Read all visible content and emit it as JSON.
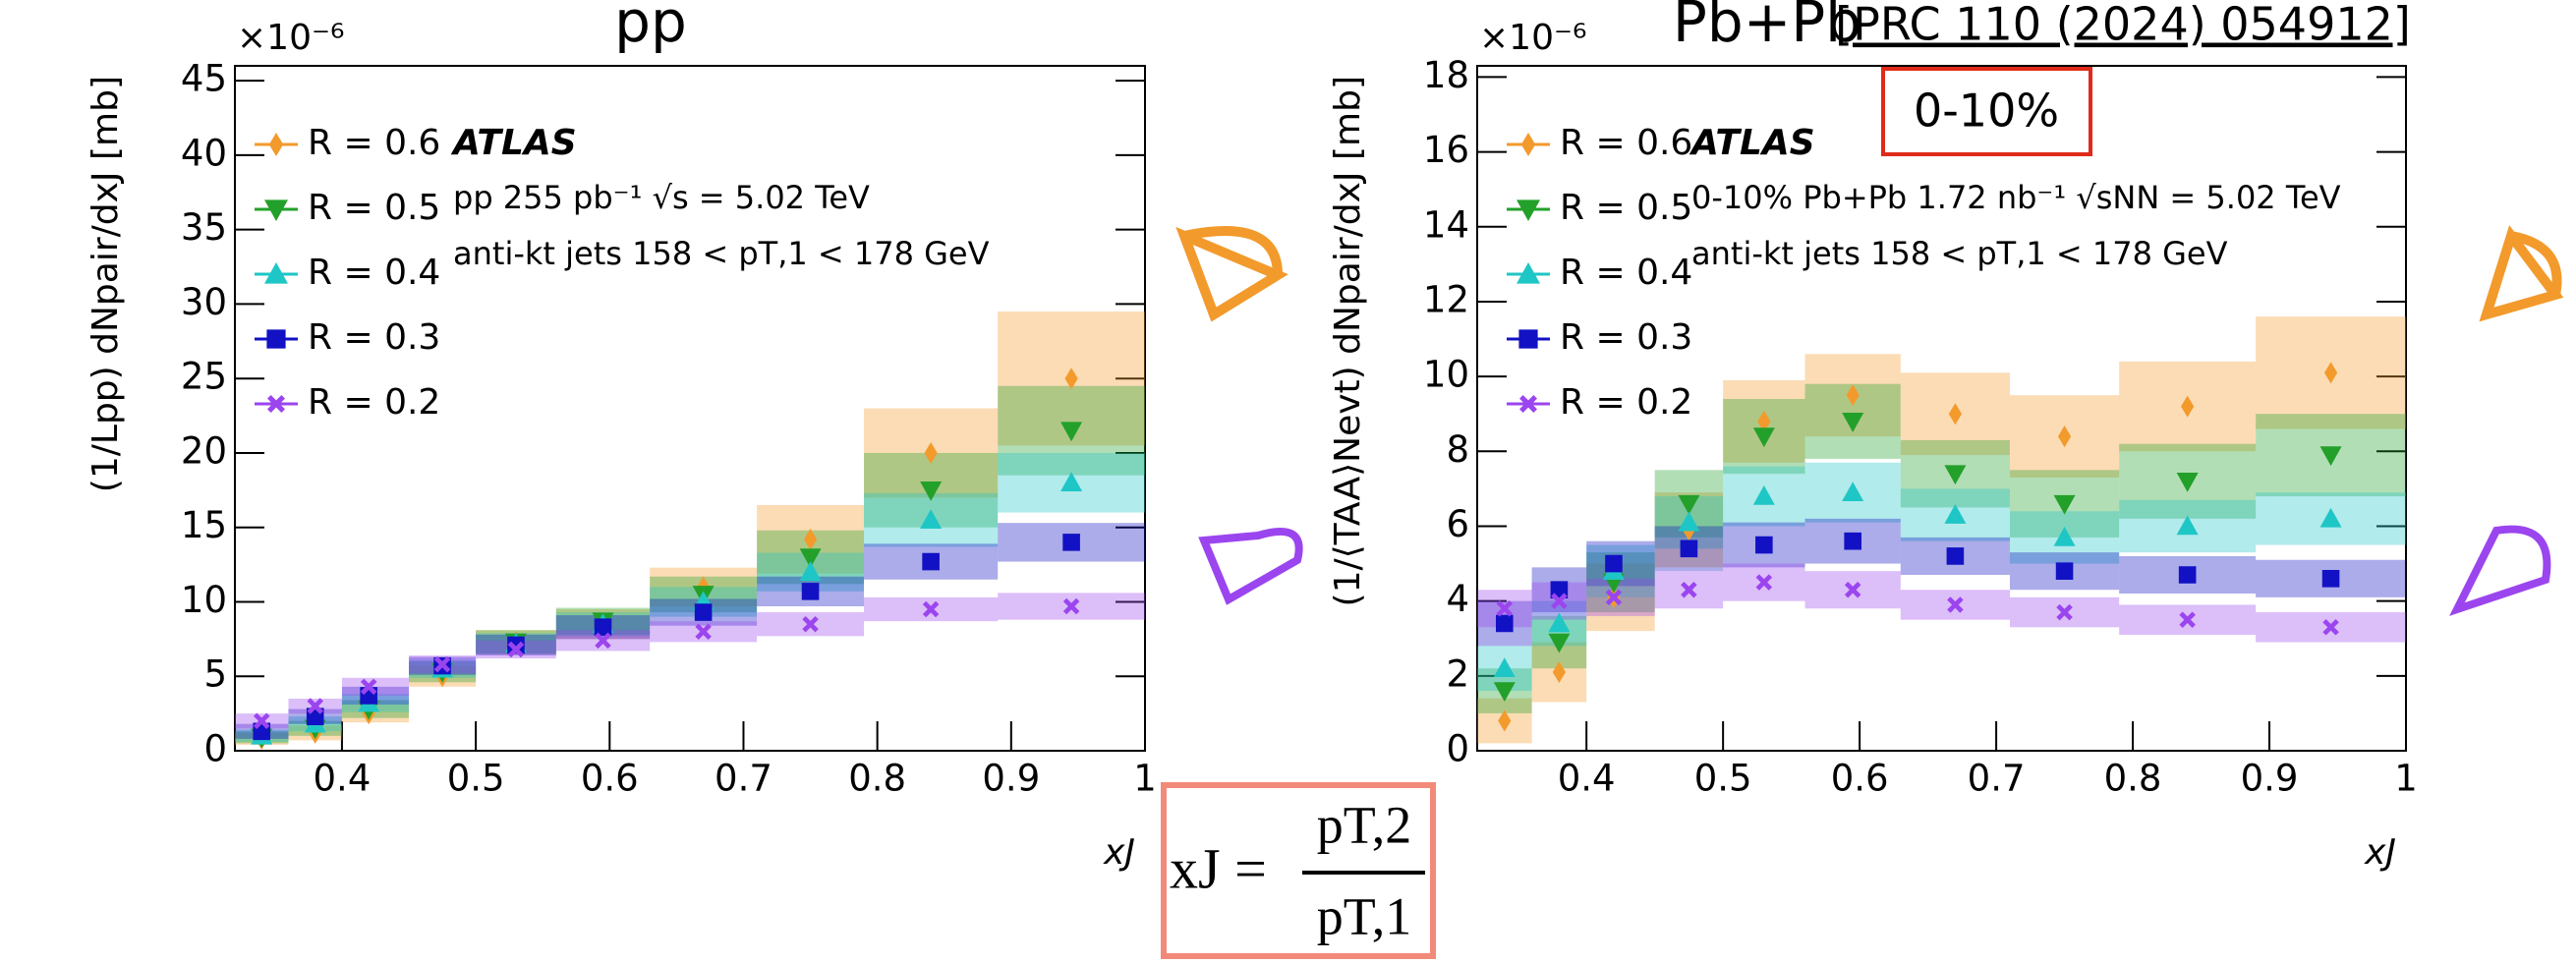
{
  "chart_data": [
    {
      "type": "scatter",
      "title": "pp",
      "multiplier": "×10⁻⁶",
      "y_label": "(1/Lpp) dNpair/dxJ [mb]",
      "x_label": "xJ",
      "annotations": [
        "ATLAS",
        "pp  255 pb⁻¹   √s = 5.02 TeV",
        "anti-kt jets   158 < pT,1 < 178 GeV"
      ],
      "bins": [
        0.32,
        0.36,
        0.4,
        0.45,
        0.5,
        0.56,
        0.63,
        0.71,
        0.79,
        0.89,
        1.0
      ],
      "x": [
        0.34,
        0.38,
        0.42,
        0.475,
        0.53,
        0.595,
        0.67,
        0.75,
        0.84,
        0.945
      ],
      "series": [
        {
          "name": "R = 0.6",
          "color": "#f39a2c",
          "marker": "diamond",
          "values": [
            0.8,
            1.2,
            2.5,
            5.0,
            7.3,
            8.5,
            11,
            14.2,
            20,
            25
          ],
          "errors": [
            0.4,
            0.5,
            0.6,
            0.7,
            0.8,
            1.0,
            1.3,
            2.3,
            3,
            4.5
          ]
        },
        {
          "name": "R = 0.5",
          "color": "#23a02a",
          "marker": "triangle-down",
          "values": [
            0.9,
            1.5,
            2.8,
            5.3,
            7.3,
            8.7,
            10.5,
            13,
            17.5,
            21.5
          ],
          "errors": [
            0.4,
            0.5,
            0.6,
            0.7,
            0.8,
            0.9,
            1.2,
            1.8,
            2.5,
            3
          ]
        },
        {
          "name": "R = 0.4",
          "color": "#1fc6c6",
          "marker": "triangle-up",
          "values": [
            1.0,
            1.8,
            3.2,
            5.5,
            7.2,
            8.5,
            10,
            12,
            15.5,
            18
          ],
          "errors": [
            0.4,
            0.5,
            0.6,
            0.6,
            0.7,
            0.8,
            1.0,
            1.3,
            1.8,
            2
          ]
        },
        {
          "name": "R = 0.3",
          "color": "#1212c4",
          "marker": "square",
          "values": [
            1.3,
            2.3,
            3.7,
            5.7,
            7.1,
            8.3,
            9.3,
            10.7,
            12.7,
            14
          ],
          "errors": [
            0.5,
            0.5,
            0.6,
            0.6,
            0.7,
            0.8,
            0.9,
            1.0,
            1.2,
            1.3
          ]
        },
        {
          "name": "R = 0.2",
          "color": "#9b45ef",
          "marker": "cross",
          "values": [
            2.0,
            3.0,
            4.3,
            5.8,
            6.8,
            7.4,
            8.0,
            8.5,
            9.5,
            9.7
          ],
          "errors": [
            0.5,
            0.5,
            0.6,
            0.6,
            0.6,
            0.7,
            0.7,
            0.8,
            0.8,
            0.9
          ]
        }
      ],
      "xlim": [
        0.32,
        1
      ],
      "xticks": [
        0.4,
        0.5,
        0.6,
        0.7,
        0.8,
        0.9,
        1
      ],
      "ylim": [
        0,
        46
      ],
      "yticks": [
        0,
        5,
        10,
        15,
        20,
        25,
        30,
        35,
        40,
        45
      ]
    },
    {
      "type": "scatter",
      "title": "Pb+Pb",
      "multiplier": "×10⁻⁶",
      "y_label": "(1/⟨TAA⟩Nevt) dNpair/dxJ [mb]",
      "x_label": "xJ",
      "annotations": [
        "ATLAS",
        "0-10%  Pb+Pb  1.72 nb⁻¹   √sNN = 5.02 TeV",
        "anti-kt jets   158 < pT,1 < 178 GeV"
      ],
      "bins": [
        0.32,
        0.36,
        0.4,
        0.45,
        0.5,
        0.56,
        0.63,
        0.71,
        0.79,
        0.89,
        1.0
      ],
      "x": [
        0.34,
        0.38,
        0.42,
        0.475,
        0.53,
        0.595,
        0.67,
        0.75,
        0.84,
        0.945
      ],
      "series": [
        {
          "name": "R = 0.6",
          "color": "#f39a2c",
          "marker": "diamond",
          "values": [
            0.8,
            2.1,
            4.1,
            5.9,
            8.8,
            9.5,
            9.0,
            8.4,
            9.2,
            10.1
          ],
          "errors": [
            0.6,
            0.8,
            0.9,
            1.0,
            1.1,
            1.1,
            1.1,
            1.1,
            1.2,
            1.5
          ]
        },
        {
          "name": "R = 0.5",
          "color": "#23a02a",
          "marker": "triangle-down",
          "values": [
            1.6,
            2.9,
            4.5,
            6.6,
            8.4,
            8.8,
            7.4,
            6.6,
            7.2,
            7.9
          ],
          "errors": [
            0.6,
            0.7,
            0.8,
            0.9,
            1.0,
            1.0,
            0.9,
            0.9,
            1.0,
            1.1
          ]
        },
        {
          "name": "R = 0.4",
          "color": "#1fc6c6",
          "marker": "triangle-up",
          "values": [
            2.2,
            3.4,
            4.8,
            6.1,
            6.8,
            6.9,
            6.3,
            5.7,
            6.0,
            6.2
          ],
          "errors": [
            0.6,
            0.6,
            0.7,
            0.7,
            0.8,
            0.8,
            0.7,
            0.7,
            0.7,
            0.7
          ]
        },
        {
          "name": "R = 0.3",
          "color": "#1212c4",
          "marker": "square",
          "values": [
            3.4,
            4.3,
            5.0,
            5.4,
            5.5,
            5.6,
            5.2,
            4.8,
            4.7,
            4.6
          ],
          "errors": [
            0.6,
            0.6,
            0.6,
            0.6,
            0.6,
            0.6,
            0.5,
            0.5,
            0.5,
            0.5
          ]
        },
        {
          "name": "R = 0.2",
          "color": "#9b45ef",
          "marker": "cross",
          "values": [
            3.8,
            4.0,
            4.1,
            4.3,
            4.5,
            4.3,
            3.9,
            3.7,
            3.5,
            3.3
          ],
          "errors": [
            0.5,
            0.5,
            0.5,
            0.5,
            0.5,
            0.5,
            0.4,
            0.4,
            0.4,
            0.4
          ]
        }
      ],
      "xlim": [
        0.32,
        1
      ],
      "xticks": [
        0.4,
        0.5,
        0.6,
        0.7,
        0.8,
        0.9,
        1
      ],
      "ylim": [
        0,
        18.3
      ],
      "yticks": [
        0,
        2,
        4,
        6,
        8,
        10,
        12,
        14,
        16,
        18
      ]
    }
  ],
  "reference": "[PRC 110 (2024) 054912]",
  "centrality_box": "0-10%",
  "formula": {
    "lhs": "xJ =",
    "numerator": "pT,2",
    "denominator": "pT,1"
  }
}
